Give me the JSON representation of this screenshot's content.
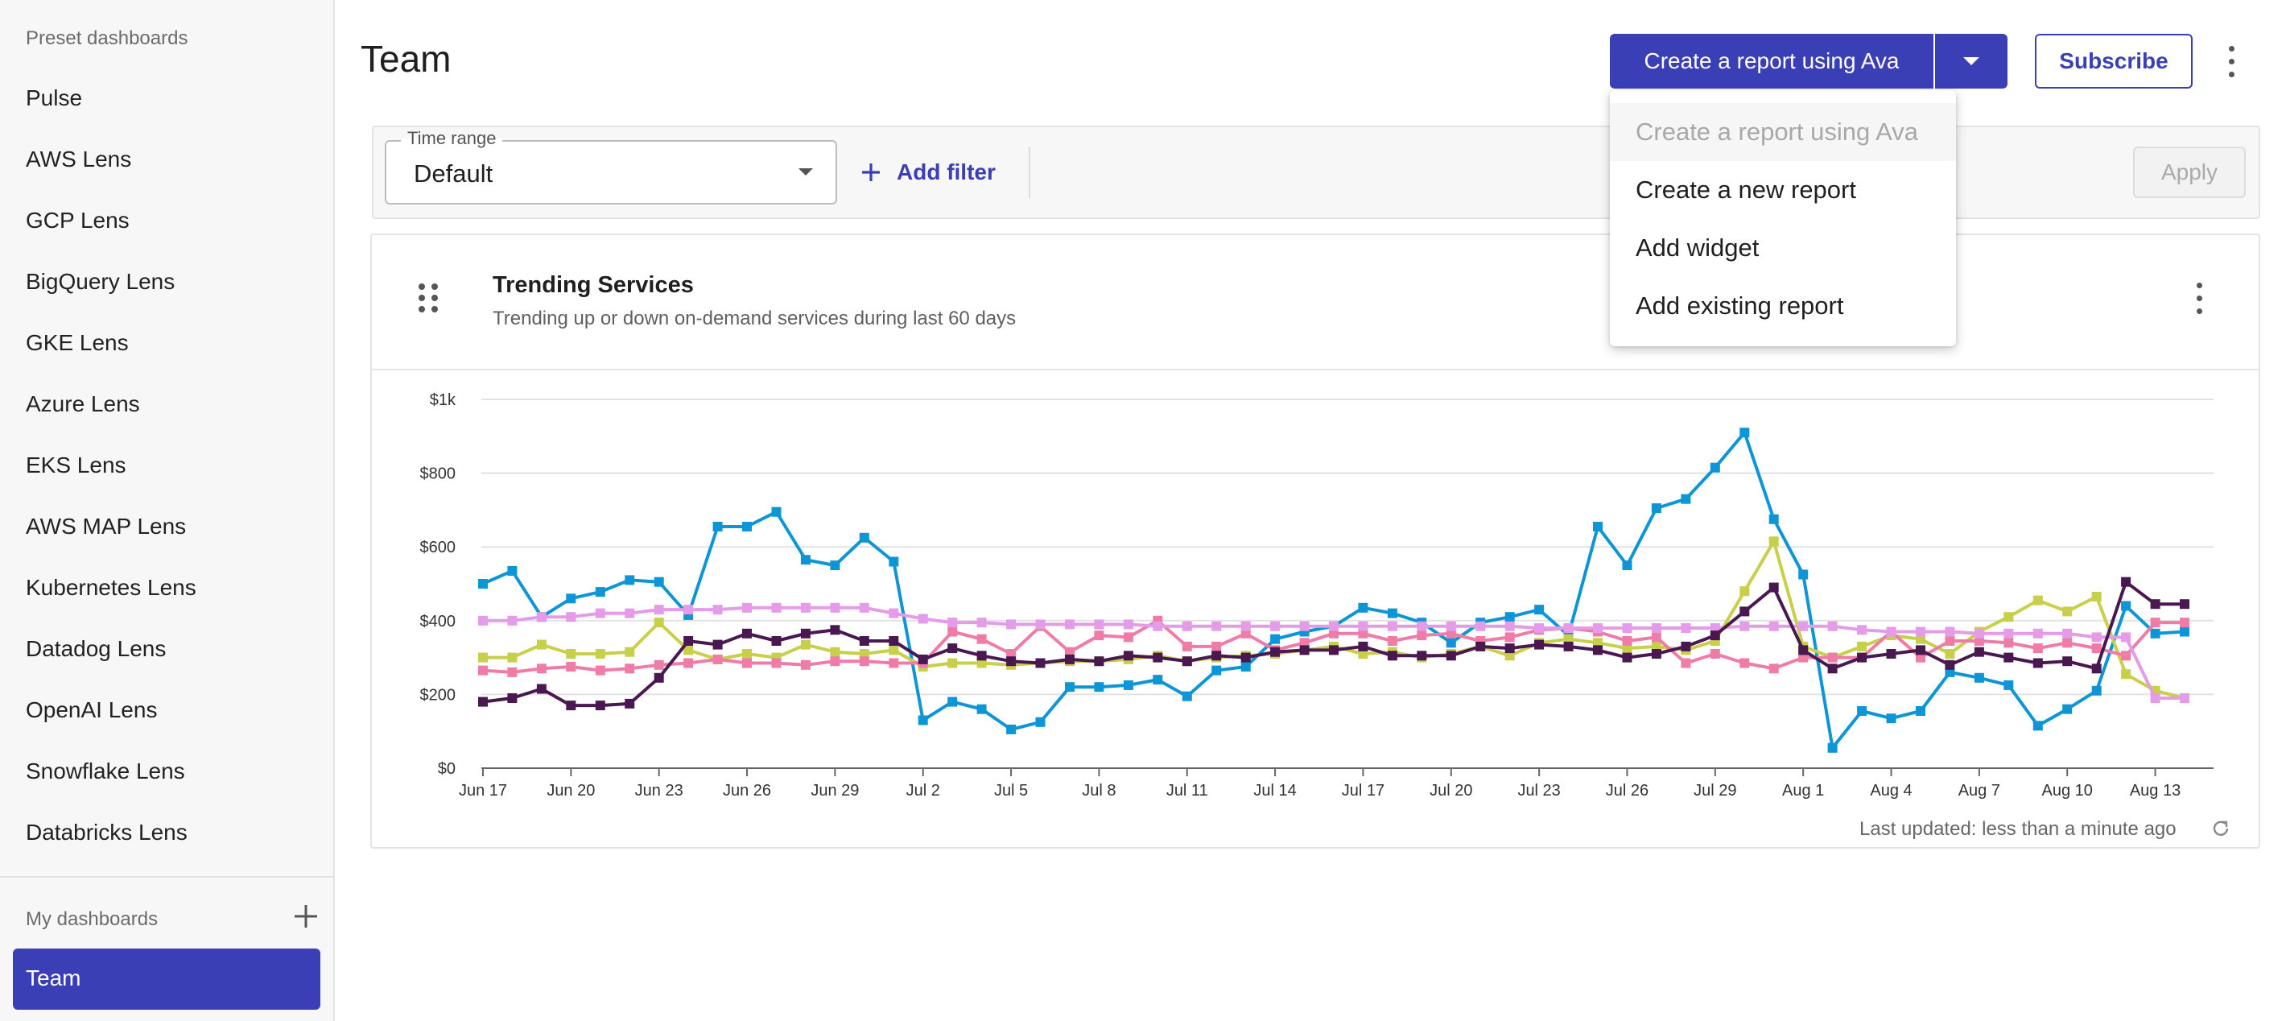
{
  "sidebar": {
    "preset_title": "Preset dashboards",
    "items": [
      {
        "label": "Pulse"
      },
      {
        "label": "AWS Lens"
      },
      {
        "label": "GCP Lens"
      },
      {
        "label": "BigQuery Lens"
      },
      {
        "label": "GKE Lens"
      },
      {
        "label": "Azure Lens"
      },
      {
        "label": "EKS Lens"
      },
      {
        "label": "AWS MAP Lens"
      },
      {
        "label": "Kubernetes Lens"
      },
      {
        "label": "Datadog Lens"
      },
      {
        "label": "OpenAI Lens"
      },
      {
        "label": "Snowflake Lens"
      },
      {
        "label": "Databricks Lens"
      }
    ],
    "my_title": "My dashboards",
    "active_item": "Team"
  },
  "header": {
    "title": "Team",
    "create_label": "Create a report using Ava",
    "subscribe_label": "Subscribe"
  },
  "menu": {
    "items": [
      {
        "label": "Create a report using Ava",
        "disabled": true
      },
      {
        "label": "Create a new report",
        "disabled": false
      },
      {
        "label": "Add widget",
        "disabled": false
      },
      {
        "label": "Add existing report",
        "disabled": false
      }
    ]
  },
  "filters": {
    "time_range_label": "Time range",
    "time_range_value": "Default",
    "add_filter_label": "Add filter",
    "apply_label": "Apply"
  },
  "widget": {
    "title": "Trending Services",
    "subtitle": "Trending up or down on-demand services during last 60 days",
    "last_updated": "Last updated: less than a minute ago"
  },
  "colors": {
    "accent": "#3b3fb6"
  },
  "chart_data": {
    "type": "line",
    "ylim": [
      0,
      1000
    ],
    "y_ticks": [
      {
        "value": 0,
        "label": "$0"
      },
      {
        "value": 200,
        "label": "$200"
      },
      {
        "value": 400,
        "label": "$400"
      },
      {
        "value": 600,
        "label": "$600"
      },
      {
        "value": 800,
        "label": "$800"
      },
      {
        "value": 1000,
        "label": "$1k"
      }
    ],
    "x_ticks": [
      {
        "index": 0,
        "label": "Jun 17"
      },
      {
        "index": 3,
        "label": "Jun 20"
      },
      {
        "index": 6,
        "label": "Jun 23"
      },
      {
        "index": 9,
        "label": "Jun 26"
      },
      {
        "index": 12,
        "label": "Jun 29"
      },
      {
        "index": 15,
        "label": "Jul 2"
      },
      {
        "index": 18,
        "label": "Jul 5"
      },
      {
        "index": 21,
        "label": "Jul 8"
      },
      {
        "index": 24,
        "label": "Jul 11"
      },
      {
        "index": 27,
        "label": "Jul 14"
      },
      {
        "index": 30,
        "label": "Jul 17"
      },
      {
        "index": 33,
        "label": "Jul 20"
      },
      {
        "index": 36,
        "label": "Jul 23"
      },
      {
        "index": 39,
        "label": "Jul 26"
      },
      {
        "index": 42,
        "label": "Jul 29"
      },
      {
        "index": 45,
        "label": "Aug 1"
      },
      {
        "index": 48,
        "label": "Aug 4"
      },
      {
        "index": 51,
        "label": "Aug 7"
      },
      {
        "index": 54,
        "label": "Aug 10"
      },
      {
        "index": 57,
        "label": "Aug 13"
      }
    ],
    "points": 59,
    "series": [
      {
        "color": "#0e95d6",
        "values": [
          500,
          535,
          410,
          460,
          478,
          510,
          505,
          415,
          655,
          655,
          695,
          565,
          550,
          625,
          560,
          130,
          180,
          160,
          105,
          125,
          220,
          220,
          225,
          240,
          195,
          265,
          275,
          350,
          370,
          385,
          435,
          420,
          395,
          340,
          395,
          410,
          430,
          360,
          655,
          550,
          705,
          730,
          815,
          910,
          675,
          525,
          55,
          155,
          135,
          155,
          260,
          245,
          225,
          115,
          160,
          210,
          440,
          365,
          370
        ]
      },
      {
        "color": "#c8cf4a",
        "values": [
          300,
          300,
          335,
          310,
          310,
          315,
          395,
          320,
          295,
          310,
          300,
          335,
          315,
          310,
          320,
          275,
          285,
          285,
          280,
          285,
          290,
          290,
          295,
          305,
          290,
          300,
          305,
          310,
          320,
          330,
          310,
          315,
          300,
          310,
          330,
          305,
          340,
          350,
          340,
          325,
          330,
          320,
          345,
          480,
          615,
          330,
          300,
          330,
          360,
          350,
          310,
          370,
          410,
          455,
          425,
          465,
          255,
          210,
          190
        ]
      },
      {
        "color": "#ef7ca7",
        "values": [
          265,
          260,
          270,
          275,
          265,
          270,
          280,
          285,
          295,
          285,
          285,
          280,
          290,
          290,
          285,
          285,
          370,
          350,
          310,
          385,
          315,
          360,
          355,
          400,
          330,
          330,
          365,
          320,
          340,
          365,
          365,
          345,
          360,
          365,
          345,
          355,
          375,
          380,
          370,
          345,
          355,
          285,
          310,
          285,
          270,
          300,
          300,
          300,
          370,
          300,
          345,
          345,
          340,
          325,
          340,
          325,
          305,
          395,
          395
        ]
      },
      {
        "color": "#e49be8",
        "values": [
          400,
          400,
          410,
          410,
          420,
          420,
          430,
          430,
          430,
          435,
          435,
          435,
          435,
          435,
          420,
          405,
          395,
          395,
          390,
          390,
          390,
          390,
          390,
          385,
          385,
          385,
          385,
          385,
          385,
          385,
          385,
          385,
          385,
          385,
          385,
          385,
          380,
          380,
          380,
          380,
          380,
          380,
          380,
          385,
          385,
          385,
          385,
          375,
          370,
          370,
          370,
          365,
          365,
          365,
          365,
          355,
          355,
          190,
          190
        ]
      },
      {
        "color": "#4a1850",
        "values": [
          180,
          190,
          215,
          170,
          170,
          175,
          245,
          345,
          335,
          365,
          345,
          365,
          375,
          345,
          345,
          295,
          325,
          305,
          290,
          285,
          295,
          290,
          305,
          300,
          290,
          305,
          300,
          315,
          320,
          320,
          330,
          305,
          305,
          305,
          330,
          325,
          335,
          330,
          320,
          300,
          310,
          330,
          360,
          425,
          490,
          320,
          270,
          300,
          310,
          320,
          280,
          315,
          300,
          285,
          290,
          270,
          505,
          445,
          445
        ]
      }
    ]
  }
}
